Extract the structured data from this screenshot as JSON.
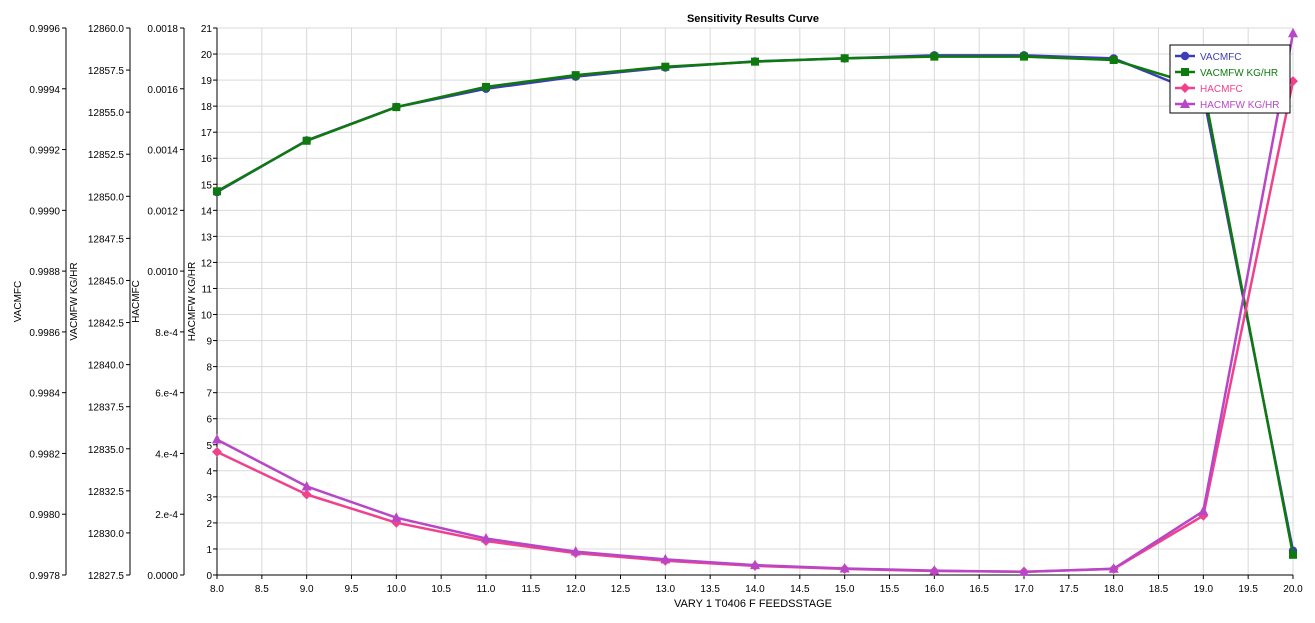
{
  "chart_data": {
    "type": "line",
    "title": "Sensitivity Results Curve",
    "xlabel": "VARY   1 T0406 F FEEDSSTAGE",
    "xlim": [
      8.0,
      20.0
    ],
    "x_ticks": [
      "8.0",
      "8.5",
      "9.0",
      "9.5",
      "10.0",
      "10.5",
      "11.0",
      "11.5",
      "12.0",
      "12.5",
      "13.0",
      "13.5",
      "14.0",
      "14.5",
      "15.0",
      "15.5",
      "16.0",
      "16.5",
      "17.0",
      "17.5",
      "18.0",
      "18.5",
      "19.0",
      "19.5",
      "20.0"
    ],
    "x": [
      8,
      9,
      10,
      11,
      12,
      13,
      14,
      15,
      16,
      17,
      18,
      19,
      20
    ],
    "grid": true,
    "legend_position": "top-right",
    "axes": [
      {
        "id": "vacmfc",
        "label": "VACMFC",
        "ylim": [
          0.9978,
          0.9996
        ],
        "ticks": [
          "0.9978",
          "0.9980",
          "0.9982",
          "0.9984",
          "0.9986",
          "0.9988",
          "0.9990",
          "0.9992",
          "0.9994",
          "0.9996"
        ]
      },
      {
        "id": "vacmfw",
        "label": "VACMFW KG/HR",
        "ylim": [
          12827.5,
          12860.0
        ],
        "ticks": [
          "12827.5",
          "12830.0",
          "12832.5",
          "12835.0",
          "12837.5",
          "12840.0",
          "12842.5",
          "12845.0",
          "12847.5",
          "12850.0",
          "12852.5",
          "12855.0",
          "12857.5",
          "12860.0"
        ]
      },
      {
        "id": "hacmfc",
        "label": "HACMFC",
        "ylim": [
          0.0,
          0.0018
        ],
        "ticks": [
          "0.0000",
          "2.e-4",
          "4.e-4",
          "6.e-4",
          "8.e-4",
          "0.0010",
          "0.0012",
          "0.0014",
          "0.0016",
          "0.0018"
        ]
      },
      {
        "id": "hacmfw",
        "label": "HACMFW KG/HR",
        "ylim": [
          0,
          21
        ],
        "ticks": [
          "0",
          "1",
          "2",
          "3",
          "4",
          "5",
          "6",
          "7",
          "8",
          "9",
          "10",
          "11",
          "12",
          "13",
          "14",
          "15",
          "16",
          "17",
          "18",
          "19",
          "20",
          "21"
        ]
      }
    ],
    "series": [
      {
        "name": "VACMFC",
        "axis": "vacmfc",
        "color": "#3d3db8",
        "marker": "circle",
        "values": [
          0.99906,
          0.99923,
          0.99934,
          0.9994,
          0.99944,
          0.99947,
          0.99949,
          0.9995,
          0.99951,
          0.99951,
          0.9995,
          0.99938,
          0.99788
        ]
      },
      {
        "name": "VACMFW KG/HR",
        "axis": "vacmfw",
        "color": "#0e7a0e",
        "marker": "square",
        "values": [
          12850.3,
          12853.3,
          12855.3,
          12856.5,
          12857.2,
          12857.7,
          12858.0,
          12858.2,
          12858.3,
          12858.3,
          12858.1,
          12856.5,
          12828.7
        ]
      },
      {
        "name": "HACMFC",
        "axis": "hacmfc",
        "color": "#f0428c",
        "marker": "diamond",
        "values": [
          0.000405,
          0.000265,
          0.000172,
          0.000112,
          7.2e-05,
          4.7e-05,
          3e-05,
          2e-05,
          1.3e-05,
          1.1e-05,
          2e-05,
          0.000195,
          0.001625
        ]
      },
      {
        "name": "HACMFW KG/HR",
        "axis": "hacmfw",
        "color": "#b847c8",
        "marker": "triangle",
        "values": [
          5.2,
          3.4,
          2.2,
          1.4,
          0.9,
          0.6,
          0.38,
          0.25,
          0.17,
          0.12,
          0.24,
          2.45,
          20.8
        ]
      }
    ]
  }
}
